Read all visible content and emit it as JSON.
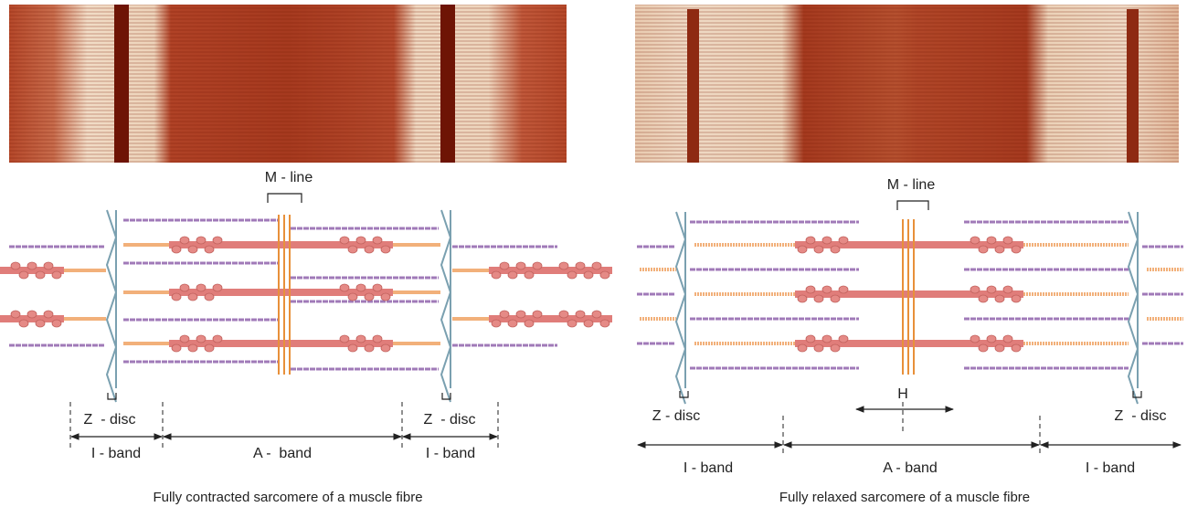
{
  "panels": [
    {
      "m_line": "M - line",
      "z_disc_left": "Z  - disc",
      "z_disc_right": "Z  - disc",
      "i_band_left": "I - band",
      "a_band": "A -  band",
      "i_band_right": "I - band",
      "caption": "Fully contracted sarcomere of a muscle fibre"
    },
    {
      "m_line": "M - line",
      "h_zone": "H",
      "z_disc_left": "Z - disc",
      "z_disc_right": "Z  - disc",
      "i_band_left": "I - band",
      "a_band": "A - band",
      "i_band_right": "I - band",
      "caption": "Fully relaxed sarcomere of a muscle fibre"
    }
  ]
}
